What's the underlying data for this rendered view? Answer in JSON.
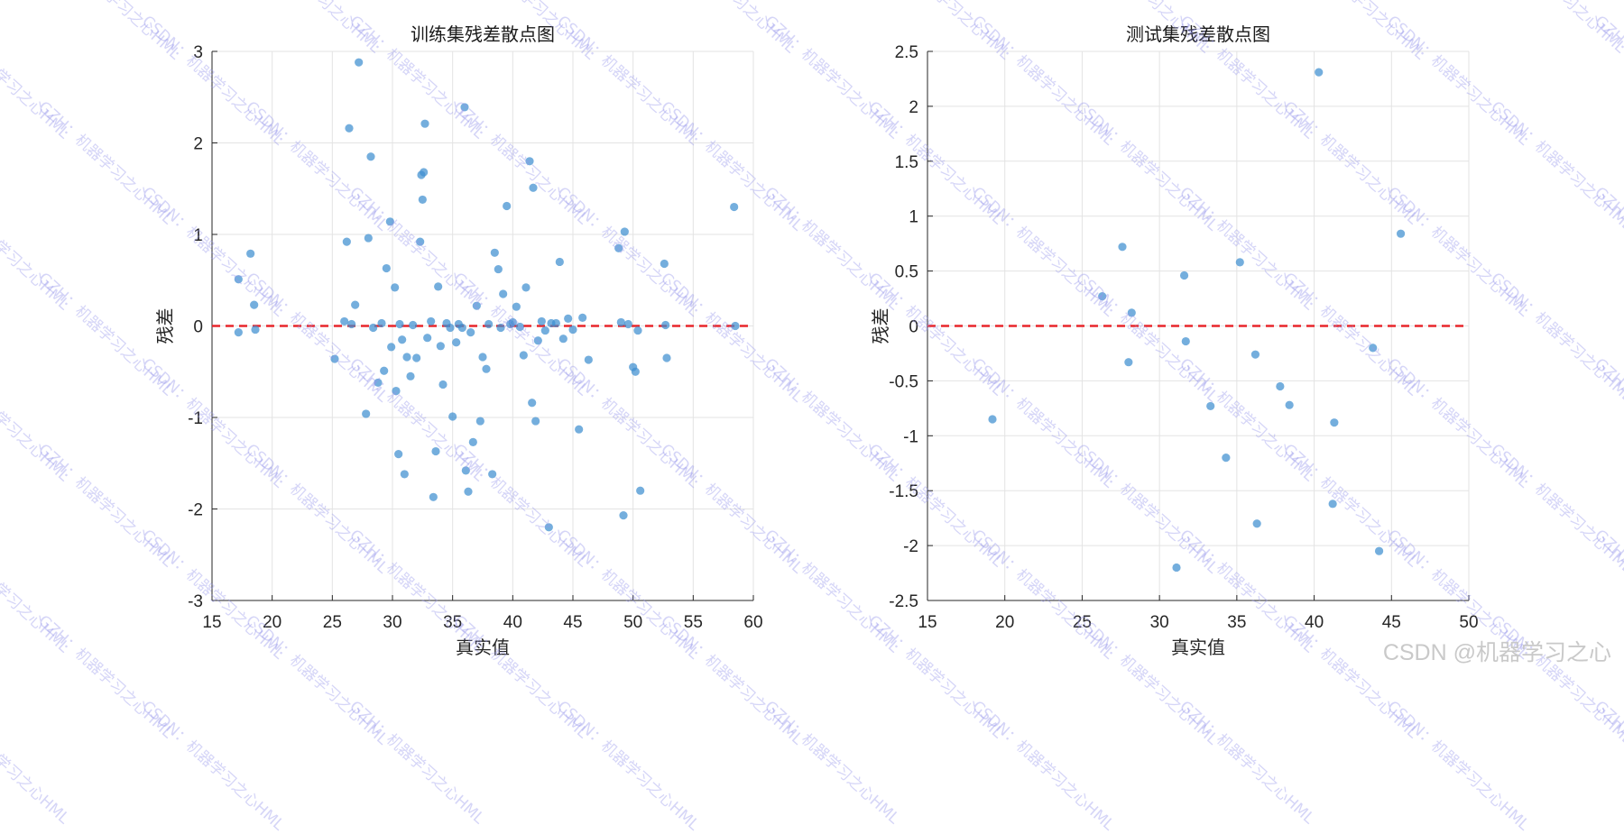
{
  "chart_data": [
    {
      "type": "scatter",
      "title": "训练集残差散点图",
      "xlabel": "真实值",
      "ylabel": "残差",
      "xlim": [
        15,
        60
      ],
      "ylim": [
        -3,
        3
      ],
      "xticks": [
        "15",
        "20",
        "25",
        "30",
        "35",
        "40",
        "45",
        "50",
        "55",
        "60"
      ],
      "yticks": [
        "-3",
        "-2",
        "-1",
        "0",
        "1",
        "2",
        "3"
      ],
      "grid": true,
      "reference_line": {
        "y": 0,
        "color": "#e8262b",
        "style": "dashed"
      },
      "marker_color": "#3f8fd0",
      "points": [
        [
          17.2,
          0.51
        ],
        [
          17.2,
          -0.07
        ],
        [
          18.2,
          0.79
        ],
        [
          18.5,
          0.23
        ],
        [
          18.6,
          -0.04
        ],
        [
          25.2,
          -0.36
        ],
        [
          26.0,
          0.05
        ],
        [
          26.2,
          0.92
        ],
        [
          26.4,
          2.16
        ],
        [
          26.6,
          0.02
        ],
        [
          26.9,
          0.23
        ],
        [
          27.2,
          2.88
        ],
        [
          27.8,
          -0.96
        ],
        [
          28.0,
          0.96
        ],
        [
          28.2,
          1.85
        ],
        [
          28.4,
          -0.02
        ],
        [
          28.8,
          -0.62
        ],
        [
          29.1,
          0.03
        ],
        [
          29.3,
          -0.49
        ],
        [
          29.5,
          0.63
        ],
        [
          29.8,
          1.14
        ],
        [
          29.9,
          -0.23
        ],
        [
          30.2,
          0.42
        ],
        [
          30.3,
          -0.71
        ],
        [
          30.5,
          -1.4
        ],
        [
          30.6,
          0.02
        ],
        [
          30.8,
          -0.15
        ],
        [
          31.0,
          -1.62
        ],
        [
          31.2,
          -0.34
        ],
        [
          31.5,
          -0.55
        ],
        [
          31.7,
          0.01
        ],
        [
          32.0,
          -0.35
        ],
        [
          32.3,
          0.92
        ],
        [
          32.4,
          1.65
        ],
        [
          32.5,
          1.38
        ],
        [
          32.6,
          1.68
        ],
        [
          32.7,
          2.21
        ],
        [
          32.9,
          -0.13
        ],
        [
          33.2,
          0.05
        ],
        [
          33.4,
          -1.87
        ],
        [
          33.6,
          -1.37
        ],
        [
          33.8,
          0.43
        ],
        [
          34.0,
          -0.22
        ],
        [
          34.2,
          -0.64
        ],
        [
          34.5,
          0.03
        ],
        [
          34.8,
          -0.02
        ],
        [
          35.0,
          -0.99
        ],
        [
          35.3,
          -0.18
        ],
        [
          35.5,
          0.02
        ],
        [
          35.8,
          -0.02
        ],
        [
          36.0,
          2.39
        ],
        [
          36.1,
          -1.58
        ],
        [
          36.3,
          -1.81
        ],
        [
          36.5,
          -0.07
        ],
        [
          36.7,
          -1.27
        ],
        [
          37.0,
          0.22
        ],
        [
          37.3,
          -1.04
        ],
        [
          37.5,
          -0.34
        ],
        [
          37.8,
          -0.47
        ],
        [
          38.0,
          0.02
        ],
        [
          38.3,
          -1.62
        ],
        [
          38.5,
          0.8
        ],
        [
          38.8,
          0.62
        ],
        [
          39.0,
          -0.02
        ],
        [
          39.2,
          0.35
        ],
        [
          39.5,
          1.31
        ],
        [
          39.8,
          0.02
        ],
        [
          40.0,
          0.04
        ],
        [
          40.3,
          0.21
        ],
        [
          40.6,
          -0.01
        ],
        [
          40.9,
          -0.32
        ],
        [
          41.1,
          0.42
        ],
        [
          41.4,
          1.8
        ],
        [
          41.6,
          -0.84
        ],
        [
          41.7,
          1.51
        ],
        [
          41.9,
          -1.04
        ],
        [
          42.1,
          -0.16
        ],
        [
          42.4,
          0.05
        ],
        [
          42.7,
          -0.05
        ],
        [
          43.0,
          -2.2
        ],
        [
          43.2,
          0.03
        ],
        [
          43.6,
          0.03
        ],
        [
          43.9,
          0.7
        ],
        [
          44.2,
          -0.14
        ],
        [
          44.6,
          0.08
        ],
        [
          45.0,
          -0.04
        ],
        [
          45.5,
          -1.13
        ],
        [
          45.8,
          0.09
        ],
        [
          46.3,
          -0.37
        ],
        [
          48.8,
          0.85
        ],
        [
          49.0,
          0.04
        ],
        [
          49.2,
          -2.07
        ],
        [
          49.3,
          1.03
        ],
        [
          49.6,
          0.02
        ],
        [
          50.0,
          -0.45
        ],
        [
          50.2,
          -0.5
        ],
        [
          50.4,
          -0.05
        ],
        [
          50.6,
          -1.8
        ],
        [
          52.6,
          0.68
        ],
        [
          52.7,
          0.01
        ],
        [
          52.8,
          -0.35
        ],
        [
          58.4,
          1.3
        ],
        [
          58.5,
          0.0
        ]
      ]
    },
    {
      "type": "scatter",
      "title": "测试集残差散点图",
      "xlabel": "真实值",
      "ylabel": "残差",
      "xlim": [
        15,
        50
      ],
      "ylim": [
        -2.5,
        2.5
      ],
      "xticks": [
        "15",
        "20",
        "25",
        "30",
        "35",
        "40",
        "45",
        "50"
      ],
      "yticks": [
        "-2.5",
        "-2",
        "-1.5",
        "-1",
        "-0.5",
        "0",
        "0.5",
        "1",
        "1.5",
        "2",
        "2.5"
      ],
      "grid": true,
      "reference_line": {
        "y": 0,
        "color": "#e8262b",
        "style": "dashed"
      },
      "marker_color": "#3f8fd0",
      "points": [
        [
          19.2,
          -0.85
        ],
        [
          26.3,
          0.27
        ],
        [
          27.6,
          0.72
        ],
        [
          28.0,
          -0.33
        ],
        [
          28.2,
          0.12
        ],
        [
          31.1,
          -2.2
        ],
        [
          31.6,
          0.46
        ],
        [
          31.7,
          -0.14
        ],
        [
          33.3,
          -0.73
        ],
        [
          34.3,
          -1.2
        ],
        [
          35.2,
          0.58
        ],
        [
          36.2,
          -0.26
        ],
        [
          36.3,
          -1.8
        ],
        [
          37.8,
          -0.55
        ],
        [
          38.4,
          -0.72
        ],
        [
          40.3,
          2.31
        ],
        [
          41.2,
          -1.62
        ],
        [
          41.3,
          -0.88
        ],
        [
          43.8,
          -0.2
        ],
        [
          44.2,
          -2.05
        ],
        [
          45.6,
          0.84
        ]
      ]
    }
  ],
  "watermarks": [
    "CSDN：机器学习之心HML",
    "GZH：机器学习之心HML"
  ],
  "footer_watermark": "CSDN @机器学习之心"
}
